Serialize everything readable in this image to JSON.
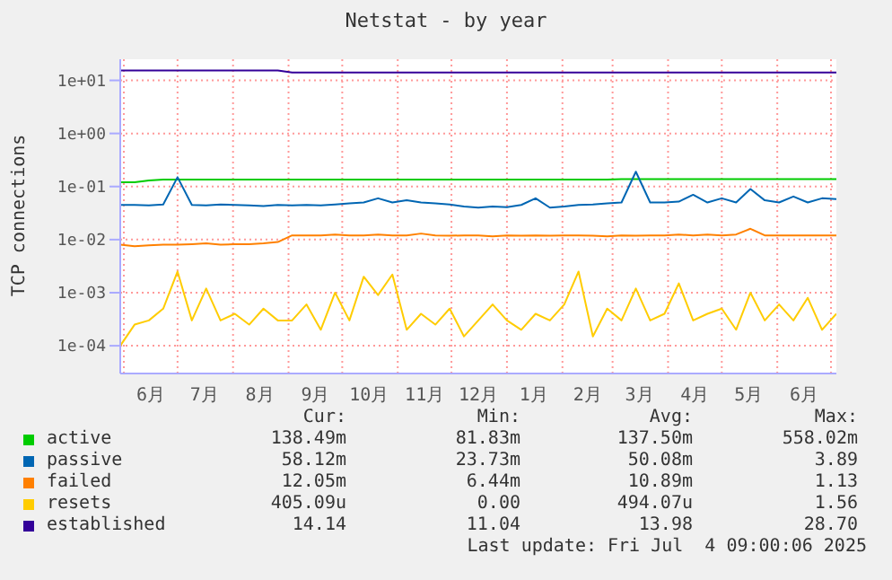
{
  "chart_data": {
    "type": "line",
    "title": "Netstat - by year",
    "ylabel": "TCP connections",
    "log": "y",
    "grid": true,
    "legend": "bottom",
    "marker": "none",
    "line_style": "solid",
    "ylim": [
      3e-05,
      25
    ],
    "yticks": [
      {
        "value": 0.0001,
        "label": "1e-04"
      },
      {
        "value": 0.001,
        "label": "1e-03"
      },
      {
        "value": 0.01,
        "label": "1e-02"
      },
      {
        "value": 0.1,
        "label": "1e-01"
      },
      {
        "value": 1,
        "label": "1e+00"
      },
      {
        "value": 10,
        "label": "1e+01"
      }
    ],
    "xlim": [
      "2024-05-30",
      "2025-07-04"
    ],
    "xticks": [
      {
        "value": "2024-06-01",
        "label": null
      },
      {
        "value": "2024-06-16",
        "label": "6月"
      },
      {
        "value": "2024-07-01",
        "label": null
      },
      {
        "value": "2024-07-16",
        "label": "7月"
      },
      {
        "value": "2024-08-01",
        "label": null
      },
      {
        "value": "2024-08-16",
        "label": "8月"
      },
      {
        "value": "2024-09-01",
        "label": null
      },
      {
        "value": "2024-09-16",
        "label": "9月"
      },
      {
        "value": "2024-10-01",
        "label": null
      },
      {
        "value": "2024-10-16",
        "label": "10月"
      },
      {
        "value": "2024-11-01",
        "label": null
      },
      {
        "value": "2024-11-16",
        "label": "11月"
      },
      {
        "value": "2024-12-01",
        "label": null
      },
      {
        "value": "2024-12-16",
        "label": "12月"
      },
      {
        "value": "2025-01-01",
        "label": null
      },
      {
        "value": "2025-01-16",
        "label": "1月"
      },
      {
        "value": "2025-02-01",
        "label": null
      },
      {
        "value": "2025-02-15",
        "label": "2月"
      },
      {
        "value": "2025-03-01",
        "label": null
      },
      {
        "value": "2025-03-16",
        "label": "3月"
      },
      {
        "value": "2025-04-01",
        "label": null
      },
      {
        "value": "2025-04-16",
        "label": "4月"
      },
      {
        "value": "2025-05-01",
        "label": null
      },
      {
        "value": "2025-05-16",
        "label": "5月"
      },
      {
        "value": "2025-06-01",
        "label": null
      },
      {
        "value": "2025-06-16",
        "label": "6月"
      },
      {
        "value": "2025-07-01",
        "label": null
      }
    ],
    "x": [
      "2024-05-30",
      "2024-06-07",
      "2024-06-15",
      "2024-06-23",
      "2024-07-01",
      "2024-07-09",
      "2024-07-17",
      "2024-07-25",
      "2024-08-02",
      "2024-08-10",
      "2024-08-18",
      "2024-08-26",
      "2024-09-03",
      "2024-09-11",
      "2024-09-19",
      "2024-09-27",
      "2024-10-05",
      "2024-10-13",
      "2024-10-21",
      "2024-10-29",
      "2024-11-06",
      "2024-11-14",
      "2024-11-22",
      "2024-11-30",
      "2024-12-08",
      "2024-12-16",
      "2024-12-24",
      "2025-01-01",
      "2025-01-09",
      "2025-01-17",
      "2025-01-25",
      "2025-02-02",
      "2025-02-10",
      "2025-02-18",
      "2025-02-26",
      "2025-03-06",
      "2025-03-14",
      "2025-03-22",
      "2025-03-30",
      "2025-04-07",
      "2025-04-15",
      "2025-04-23",
      "2025-05-01",
      "2025-05-09",
      "2025-05-17",
      "2025-05-25",
      "2025-06-02",
      "2025-06-10",
      "2025-06-18",
      "2025-06-26",
      "2025-07-04"
    ],
    "series": [
      {
        "name": "active",
        "color": "#00cc00",
        "values": [
          0.12,
          0.12,
          0.13,
          0.135,
          0.135,
          0.135,
          0.135,
          0.135,
          0.135,
          0.135,
          0.135,
          0.135,
          0.135,
          0.135,
          0.135,
          0.135,
          0.135,
          0.135,
          0.135,
          0.135,
          0.135,
          0.135,
          0.135,
          0.135,
          0.135,
          0.135,
          0.135,
          0.135,
          0.135,
          0.135,
          0.135,
          0.135,
          0.135,
          0.135,
          0.135,
          0.138,
          0.138,
          0.138,
          0.138,
          0.138,
          0.138,
          0.138,
          0.138,
          0.138,
          0.138,
          0.138,
          0.138,
          0.138,
          0.138,
          0.138,
          0.138
        ]
      },
      {
        "name": "passive",
        "color": "#0066b3",
        "values": [
          0.045,
          0.045,
          0.044,
          0.046,
          0.15,
          0.045,
          0.044,
          0.046,
          0.045,
          0.044,
          0.043,
          0.045,
          0.044,
          0.045,
          0.044,
          0.046,
          0.048,
          0.05,
          0.06,
          0.05,
          0.055,
          0.05,
          0.048,
          0.046,
          0.042,
          0.04,
          0.042,
          0.041,
          0.045,
          0.06,
          0.04,
          0.042,
          0.045,
          0.046,
          0.048,
          0.05,
          0.19,
          0.05,
          0.05,
          0.052,
          0.07,
          0.05,
          0.06,
          0.05,
          0.09,
          0.055,
          0.05,
          0.065,
          0.05,
          0.06,
          0.058
        ]
      },
      {
        "name": "failed",
        "color": "#ff8000",
        "values": [
          0.008,
          0.0075,
          0.0078,
          0.008,
          0.008,
          0.0082,
          0.0085,
          0.008,
          0.0082,
          0.0082,
          0.0085,
          0.009,
          0.012,
          0.012,
          0.012,
          0.0125,
          0.012,
          0.012,
          0.0125,
          0.012,
          0.012,
          0.013,
          0.012,
          0.0118,
          0.012,
          0.012,
          0.0115,
          0.012,
          0.0118,
          0.012,
          0.0118,
          0.012,
          0.012,
          0.0118,
          0.0115,
          0.012,
          0.0118,
          0.012,
          0.012,
          0.0125,
          0.012,
          0.0125,
          0.012,
          0.0125,
          0.016,
          0.012,
          0.012,
          0.012,
          0.012,
          0.012,
          0.012
        ]
      },
      {
        "name": "resets",
        "color": "#ffcc00",
        "values": [
          0.0001,
          0.00025,
          0.0003,
          0.0005,
          0.0025,
          0.0003,
          0.0012,
          0.0003,
          0.0004,
          0.00025,
          0.0005,
          0.0003,
          0.0003,
          0.0006,
          0.0002,
          0.001,
          0.0003,
          0.002,
          0.0009,
          0.0022,
          0.0002,
          0.0004,
          0.00025,
          0.0005,
          0.00015,
          0.0003,
          0.0006,
          0.0003,
          0.0002,
          0.0004,
          0.0003,
          0.0006,
          0.0025,
          0.00015,
          0.0005,
          0.0003,
          0.0012,
          0.0003,
          0.0004,
          0.0015,
          0.0003,
          0.0004,
          0.0005,
          0.0002,
          0.001,
          0.0003,
          0.0006,
          0.0003,
          0.0008,
          0.0002,
          0.0004
        ]
      },
      {
        "name": "established",
        "color": "#330099",
        "values": [
          15.3,
          15.3,
          15.3,
          15.3,
          15.3,
          15.3,
          15.3,
          15.3,
          15.3,
          15.3,
          15.3,
          15.3,
          14.1,
          14.1,
          14.1,
          14.1,
          14.1,
          14.1,
          14.1,
          14.1,
          14.1,
          14.1,
          14.1,
          14.1,
          14.1,
          14.1,
          14.1,
          14.1,
          14.1,
          14.1,
          14.1,
          14.1,
          14.1,
          14.1,
          14.1,
          14.1,
          14.1,
          14.1,
          14.1,
          14.1,
          14.1,
          14.1,
          14.1,
          14.1,
          14.1,
          14.1,
          14.1,
          14.1,
          14.1,
          14.1,
          14.14
        ]
      }
    ],
    "annotations": [
      "Cur:",
      "Min:",
      "Avg:",
      "Max:",
      "138.49m",
      "81.83m",
      "137.50m",
      "558.02m",
      "58.12m",
      "23.73m",
      "50.08m",
      "3.89",
      "12.05m",
      "6.44m",
      "10.89m",
      "1.13",
      "405.09u",
      "0.00",
      "494.07u",
      "1.56",
      "14.14",
      "11.04",
      "13.98",
      "28.70",
      "Last update: Fri Jul  4 09:00:06 2025"
    ]
  }
}
